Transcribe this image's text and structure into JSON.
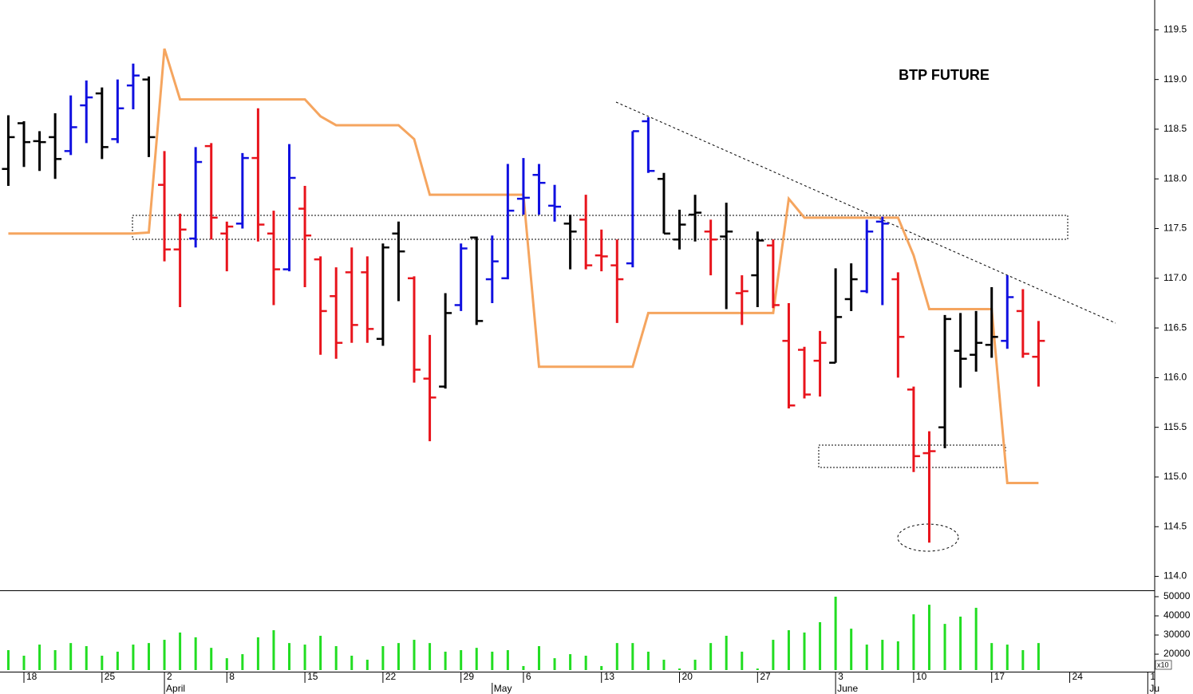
{
  "chart_data": {
    "type": "ohlc",
    "title": "BTP FUTURE",
    "categories": [
      null,
      "18",
      null,
      null,
      null,
      null,
      "25",
      null,
      null,
      null,
      "2",
      null,
      null,
      null,
      "8",
      null,
      null,
      null,
      null,
      "15",
      null,
      null,
      null,
      null,
      "22",
      null,
      null,
      null,
      null,
      "29",
      null,
      null,
      null,
      "6",
      null,
      null,
      null,
      null,
      "13",
      null,
      null,
      null,
      null,
      "20",
      null,
      null,
      null,
      null,
      "27",
      null,
      null,
      null,
      null,
      "3",
      null,
      null,
      null,
      null,
      "10",
      null,
      null,
      null,
      null,
      "17",
      null,
      null,
      null,
      null,
      "24",
      null,
      null,
      null,
      null,
      "1"
    ],
    "month_labels": [
      null,
      null,
      null,
      null,
      null,
      null,
      null,
      null,
      null,
      null,
      "April",
      null,
      null,
      null,
      null,
      null,
      null,
      null,
      null,
      null,
      null,
      null,
      null,
      null,
      null,
      null,
      null,
      null,
      null,
      null,
      null,
      "May",
      null,
      null,
      null,
      null,
      null,
      null,
      null,
      null,
      null,
      null,
      null,
      null,
      null,
      null,
      null,
      null,
      null,
      null,
      null,
      null,
      null,
      "June",
      null,
      null,
      null,
      null,
      null,
      null,
      null,
      null,
      null,
      null,
      null,
      null,
      null,
      null,
      null,
      null,
      null,
      null,
      null,
      "Ju"
    ],
    "open": [
      118.1,
      118.56,
      118.38,
      118.42,
      118.28,
      118.74,
      118.86,
      118.4,
      118.94,
      119.0,
      117.94,
      117.29,
      117.4,
      118.33,
      117.45,
      117.55,
      118.21,
      117.45,
      117.09,
      117.7,
      117.19,
      116.82,
      117.06,
      117.06,
      116.39,
      117.45,
      117.0,
      115.99,
      115.91,
      116.73,
      117.41,
      116.99,
      117.0,
      117.8,
      118.04,
      117.73,
      117.55,
      117.59,
      117.23,
      117.13,
      117.15,
      118.58,
      118.0,
      117.39,
      117.64,
      117.47,
      117.42,
      116.85,
      117.03,
      117.33,
      116.37,
      116.28,
      116.17,
      116.15,
      116.79,
      116.87,
      117.57,
      116.99,
      115.88,
      115.24,
      115.5,
      116.27,
      116.23,
      116.33,
      116.37,
      116.67,
      116.21,
      null,
      null,
      null,
      null,
      null,
      null,
      null
    ],
    "high": [
      118.64,
      118.58,
      118.48,
      118.66,
      118.84,
      118.99,
      118.92,
      119.0,
      119.16,
      119.03,
      118.28,
      117.65,
      118.32,
      118.36,
      117.57,
      118.26,
      118.71,
      117.68,
      118.35,
      117.93,
      117.22,
      117.11,
      117.31,
      117.22,
      117.35,
      117.57,
      117.02,
      116.43,
      116.85,
      117.35,
      117.42,
      117.43,
      118.15,
      118.21,
      118.15,
      117.94,
      117.64,
      117.84,
      117.49,
      117.39,
      118.48,
      118.62,
      118.06,
      117.69,
      117.84,
      117.59,
      117.76,
      117.03,
      117.47,
      117.39,
      116.75,
      116.31,
      116.47,
      117.1,
      117.15,
      117.59,
      117.62,
      117.06,
      115.91,
      115.46,
      116.63,
      116.65,
      116.67,
      116.91,
      117.03,
      116.89,
      116.57,
      null,
      null,
      null,
      null,
      null,
      null,
      null
    ],
    "low": [
      117.93,
      118.12,
      118.08,
      118.0,
      118.24,
      118.36,
      118.2,
      118.36,
      118.7,
      118.22,
      117.17,
      116.71,
      117.31,
      117.39,
      117.07,
      117.5,
      117.37,
      116.73,
      117.07,
      116.91,
      116.23,
      116.19,
      116.35,
      116.35,
      116.32,
      116.77,
      115.95,
      115.36,
      115.89,
      116.67,
      116.53,
      116.75,
      116.99,
      117.64,
      117.64,
      117.57,
      117.09,
      117.09,
      117.07,
      116.55,
      117.11,
      118.06,
      117.45,
      117.29,
      117.37,
      117.03,
      116.69,
      116.53,
      116.71,
      116.7,
      115.69,
      115.79,
      115.81,
      116.15,
      116.67,
      116.85,
      116.73,
      116.0,
      115.05,
      114.34,
      115.29,
      115.9,
      116.06,
      116.2,
      116.29,
      116.2,
      115.91,
      null,
      null,
      null,
      null,
      null,
      null,
      null
    ],
    "close": [
      118.42,
      118.37,
      118.37,
      118.2,
      118.52,
      118.82,
      118.32,
      118.71,
      119.04,
      118.42,
      117.29,
      117.49,
      118.17,
      117.61,
      117.52,
      118.21,
      117.54,
      117.09,
      118.01,
      117.43,
      116.67,
      116.35,
      116.53,
      116.49,
      117.31,
      117.27,
      116.08,
      115.8,
      116.65,
      117.3,
      116.57,
      117.17,
      117.68,
      117.81,
      117.96,
      117.72,
      117.47,
      117.13,
      117.22,
      116.99,
      118.48,
      118.08,
      117.45,
      117.54,
      117.66,
      117.39,
      117.47,
      116.87,
      117.38,
      116.73,
      115.72,
      115.83,
      116.35,
      116.61,
      116.99,
      117.47,
      117.55,
      116.41,
      115.21,
      115.26,
      116.59,
      116.19,
      116.35,
      116.41,
      116.81,
      116.24,
      116.37,
      null,
      null,
      null,
      null,
      null,
      null,
      null
    ],
    "bar_colors": [
      "#000000",
      "#000000",
      "#000000",
      "#000000",
      "#1010e0",
      "#1010e0",
      "#000000",
      "#1010e0",
      "#1010e0",
      "#000000",
      "#e8141c",
      "#e8141c",
      "#1010e0",
      "#e8141c",
      "#e8141c",
      "#1010e0",
      "#e8141c",
      "#e8141c",
      "#1010e0",
      "#e8141c",
      "#e8141c",
      "#e8141c",
      "#e8141c",
      "#e8141c",
      "#000000",
      "#000000",
      "#e8141c",
      "#e8141c",
      "#000000",
      "#1010e0",
      "#000000",
      "#1010e0",
      "#1010e0",
      "#1010e0",
      "#1010e0",
      "#1010e0",
      "#000000",
      "#e8141c",
      "#e8141c",
      "#e8141c",
      "#1010e0",
      "#1010e0",
      "#000000",
      "#000000",
      "#000000",
      "#e8141c",
      "#000000",
      "#e8141c",
      "#000000",
      "#e8141c",
      "#e8141c",
      "#e8141c",
      "#e8141c",
      "#000000",
      "#000000",
      "#1010e0",
      "#1010e0",
      "#e8141c",
      "#e8141c",
      "#e8141c",
      "#000000",
      "#000000",
      "#000000",
      "#000000",
      "#1010e0",
      "#e8141c",
      "#e8141c",
      null,
      null,
      null,
      null,
      null,
      null,
      null
    ],
    "line": {
      "color": "#f5a55f",
      "values": [
        117.45,
        117.45,
        117.45,
        117.45,
        117.45,
        117.45,
        117.45,
        117.45,
        117.45,
        117.46,
        119.31,
        118.8,
        118.8,
        118.8,
        118.8,
        118.8,
        118.8,
        118.8,
        118.8,
        118.8,
        118.63,
        118.54,
        118.54,
        118.54,
        118.54,
        118.54,
        118.4,
        117.84,
        117.84,
        117.84,
        117.84,
        117.84,
        117.84,
        117.84,
        116.11,
        116.11,
        116.11,
        116.11,
        116.11,
        116.11,
        116.11,
        116.65,
        116.65,
        116.65,
        116.65,
        116.65,
        116.65,
        116.65,
        116.65,
        116.65,
        117.8,
        117.61,
        117.61,
        117.61,
        117.61,
        117.61,
        117.61,
        117.61,
        117.23,
        116.69,
        116.69,
        116.69,
        116.69,
        116.69,
        114.94,
        114.94,
        114.94,
        null,
        null,
        null,
        null,
        null,
        null,
        null
      ]
    },
    "ylim": [
      113.86,
      119.8
    ],
    "yticks": [
      {
        "value": 114,
        "label": "114.0"
      },
      114.5,
      {
        "value": 115,
        "label": "115.0"
      },
      115.5,
      {
        "value": 116,
        "label": "116.0"
      },
      116.5,
      {
        "value": 117,
        "label": "117.0"
      },
      117.5,
      {
        "value": 118,
        "label": "118.0"
      },
      118.5,
      {
        "value": 119,
        "label": "119.0"
      },
      119.5
    ],
    "volume": {
      "color": "#22dd22",
      "multiplier_label": "x10",
      "values": [
        22100,
        19200,
        25000,
        22100,
        25800,
        24200,
        19200,
        21300,
        25000,
        25800,
        27500,
        31300,
        28800,
        23300,
        17900,
        20000,
        28800,
        32500,
        25800,
        25000,
        29600,
        24200,
        19200,
        17100,
        24200,
        25800,
        27500,
        25800,
        21300,
        22100,
        23300,
        21300,
        22100,
        13800,
        24200,
        17900,
        20000,
        19200,
        13800,
        25800,
        25800,
        21300,
        17100,
        12500,
        17100,
        25800,
        29600,
        21300,
        12500,
        27500,
        32500,
        31300,
        36700,
        50000,
        33300,
        25000,
        27500,
        26700,
        40800,
        45800,
        35800,
        39600,
        44200,
        25800,
        25000,
        22100,
        25800,
        null,
        null,
        null,
        null,
        null,
        null,
        null
      ],
      "ylim": [
        11700,
        52500
      ],
      "yticks": [
        20000,
        30000,
        40000,
        50000
      ]
    }
  }
}
